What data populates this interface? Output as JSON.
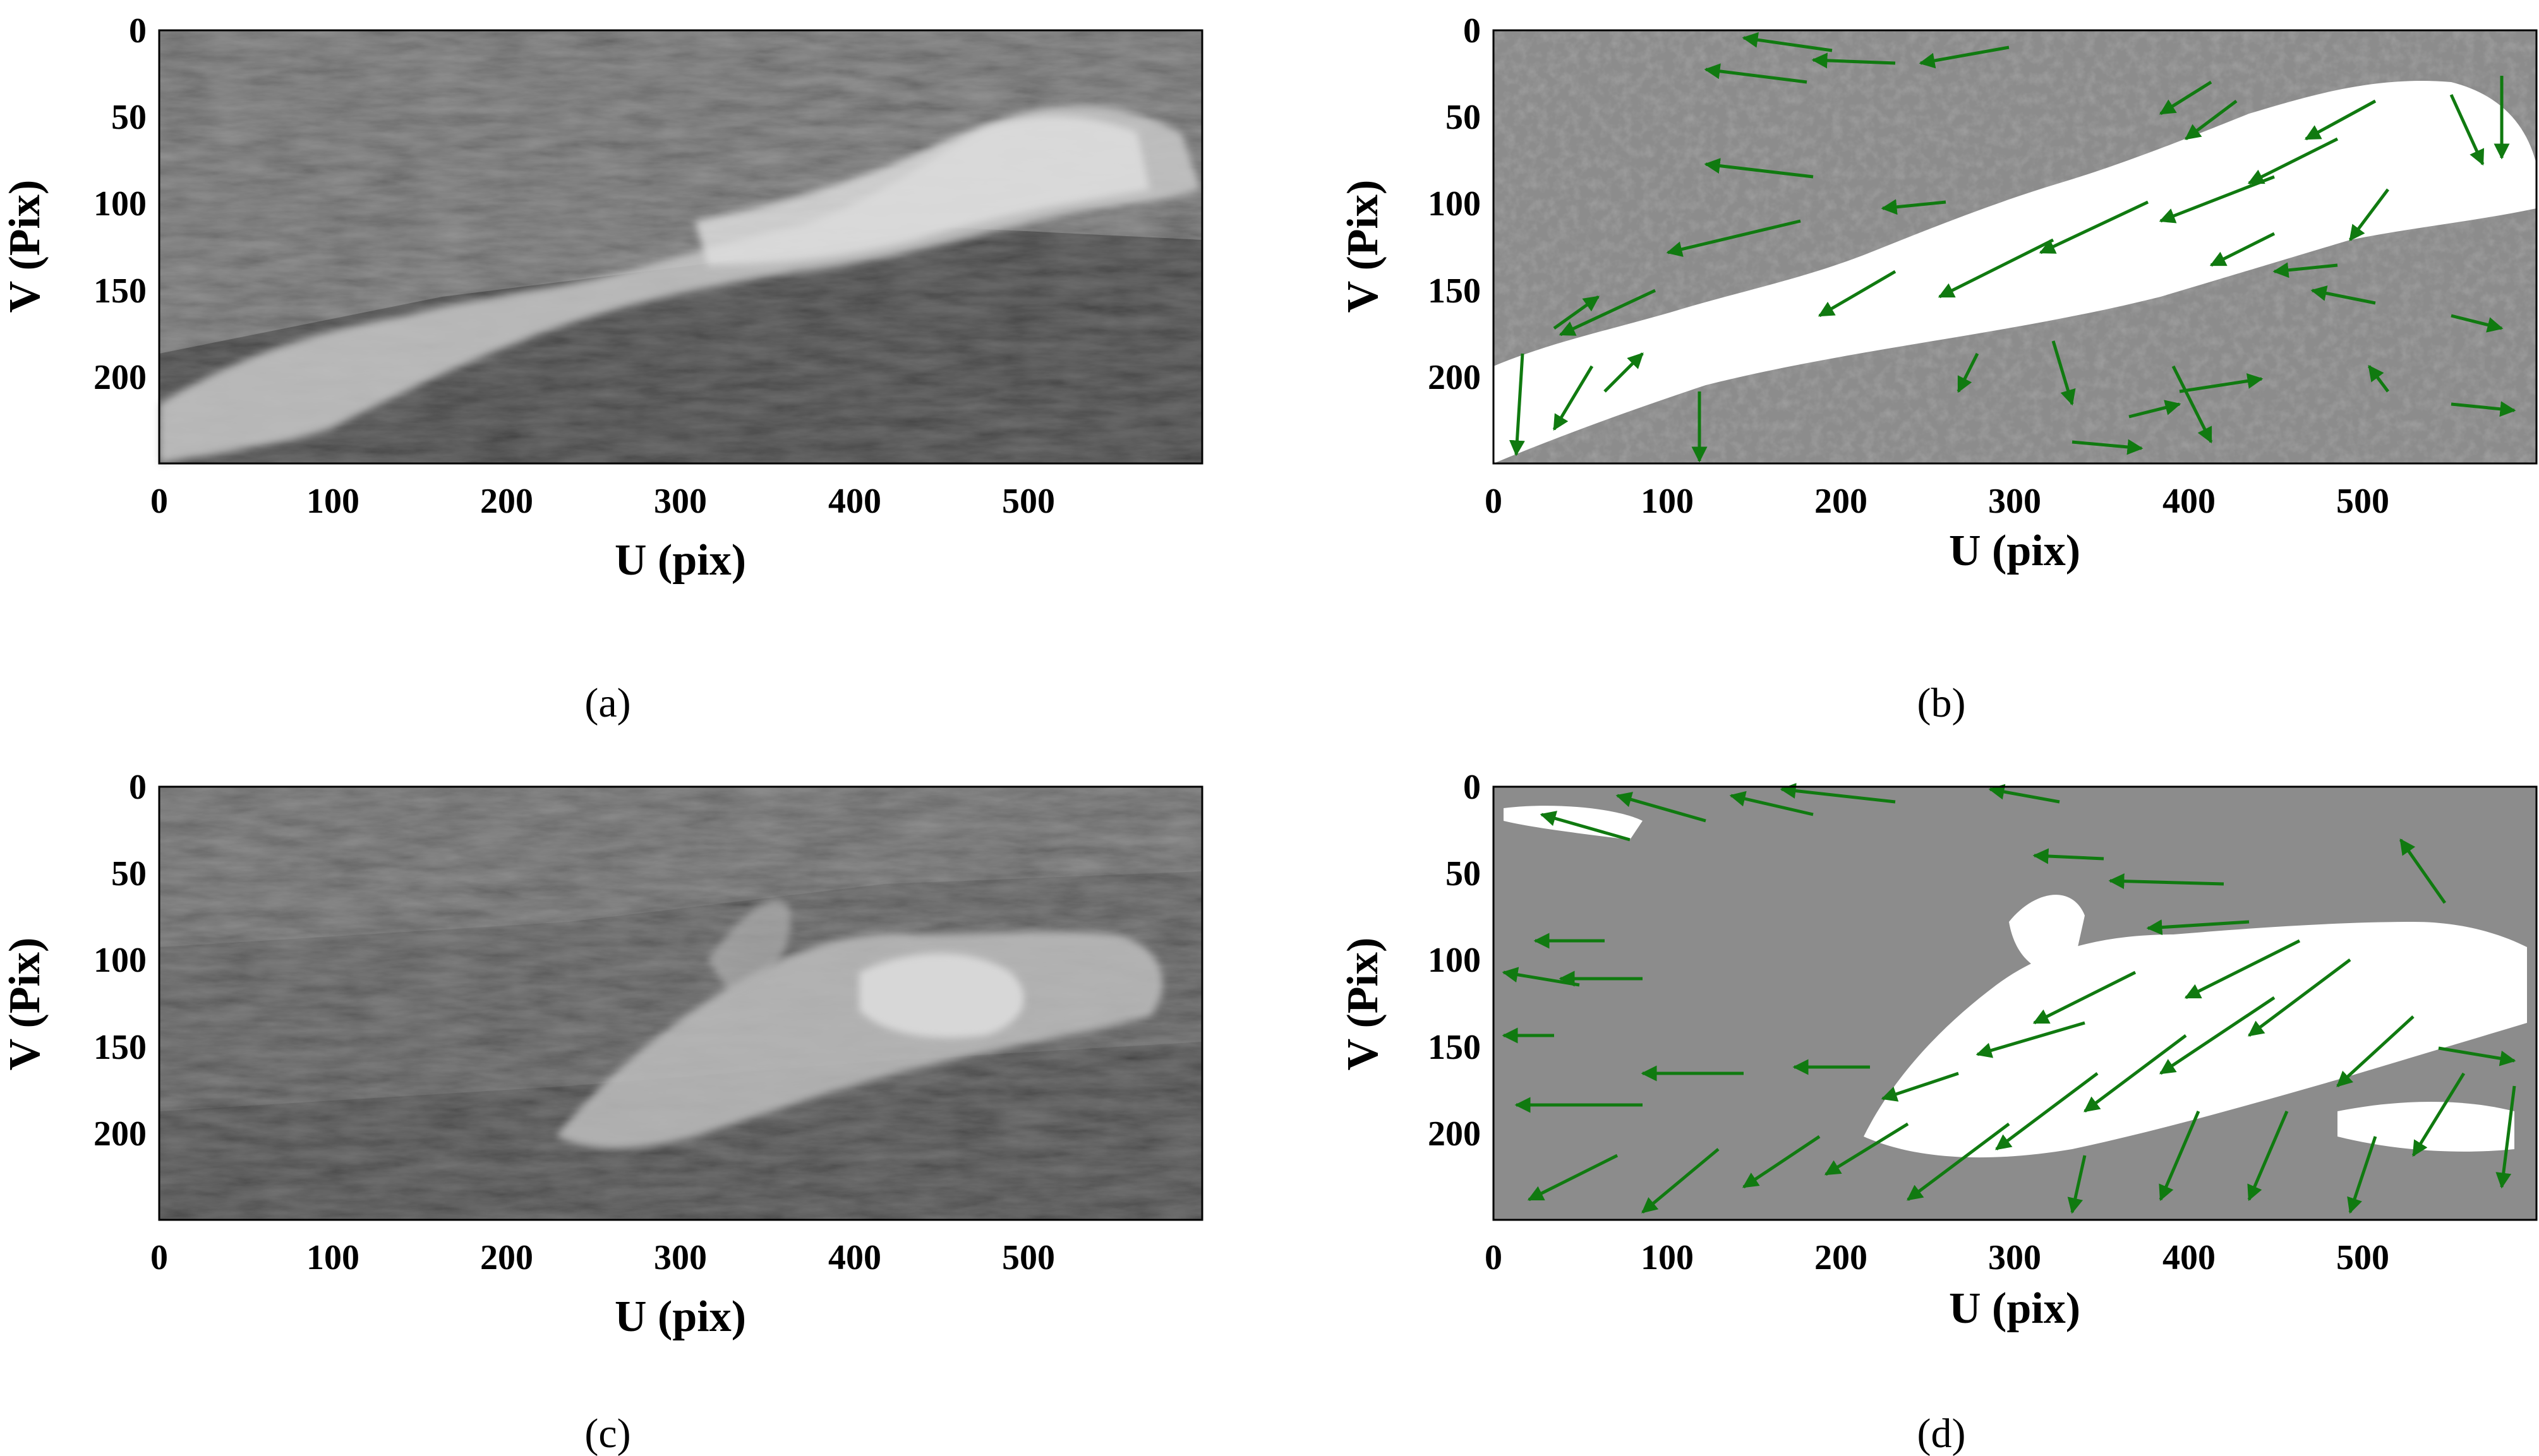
{
  "figure": {
    "colors": {
      "arrow": "#107a10",
      "mask_background": "#8c8c8c",
      "foam": "#ffffff",
      "sea_dark": "#2a2a2a",
      "sea_light": "#6e6e6e",
      "axis": "#000000"
    }
  },
  "chart_data": [
    {
      "id": "a",
      "type": "image",
      "panel_label": "(a)",
      "content": "grayscale photo of a breaking wave",
      "xlabel": "U (pix)",
      "ylabel": "V (Pix)",
      "xlim": [
        0,
        600
      ],
      "ylim": [
        250,
        0
      ],
      "xticks": [
        "0",
        "100",
        "200",
        "300",
        "400",
        "500"
      ],
      "yticks": [
        "0",
        "50",
        "100",
        "150",
        "200"
      ]
    },
    {
      "id": "b",
      "type": "quiver",
      "panel_label": "(b)",
      "content": "foam mask with green velocity vectors",
      "xlabel": "U (pix)",
      "ylabel": "V (Pix)",
      "xlim": [
        0,
        600
      ],
      "ylim": [
        250,
        0
      ],
      "xticks": [
        "0",
        "100",
        "200",
        "300",
        "400",
        "500"
      ],
      "yticks": [
        "0",
        "50",
        "100",
        "150",
        "200"
      ]
    },
    {
      "id": "c",
      "type": "image",
      "panel_label": "(c)",
      "content": "grayscale photo of a breaking wave",
      "xlabel": "U (pix)",
      "ylabel": "V (Pix)",
      "xlim": [
        0,
        600
      ],
      "ylim": [
        250,
        0
      ],
      "xticks": [
        "0",
        "100",
        "200",
        "300",
        "400",
        "500"
      ],
      "yticks": [
        "0",
        "50",
        "100",
        "150",
        "200"
      ]
    },
    {
      "id": "d",
      "type": "quiver",
      "panel_label": "(d)",
      "content": "foam mask with green velocity vectors",
      "xlabel": "U (pix)",
      "ylabel": "V (Pix)",
      "xlim": [
        0,
        600
      ],
      "ylim": [
        250,
        0
      ],
      "xticks": [
        "0",
        "100",
        "200",
        "300",
        "400",
        "500"
      ],
      "yticks": [
        "0",
        "50",
        "100",
        "150",
        "200"
      ]
    }
  ]
}
